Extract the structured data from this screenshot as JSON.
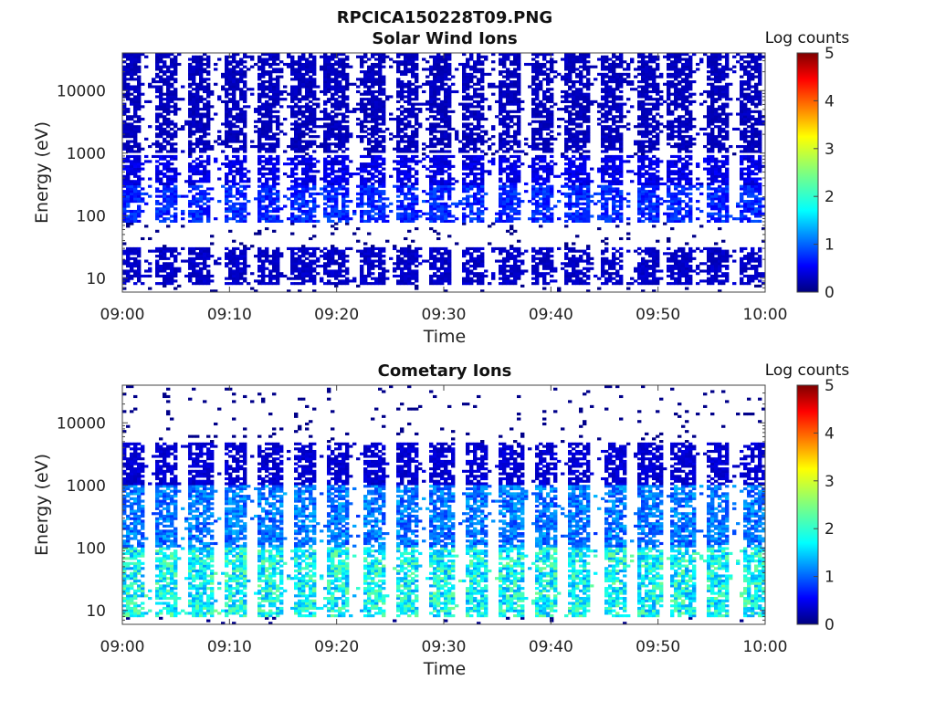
{
  "figure": {
    "title": "RPCICA150228T09.PNG"
  },
  "chart_data": [
    {
      "type": "heatmap",
      "title": "Solar Wind Ions",
      "xlabel": "Time",
      "ylabel": "Energy (eV)",
      "x_range": [
        "09:00",
        "10:00"
      ],
      "x_ticks": [
        "09:00",
        "09:10",
        "09:20",
        "09:30",
        "09:40",
        "09:50",
        "10:00"
      ],
      "y_scale": "log",
      "ylim": [
        6,
        40000
      ],
      "y_ticks": [
        {
          "value": 10,
          "label": "10"
        },
        {
          "value": 100,
          "label": "100"
        },
        {
          "value": 1000,
          "label": "1000"
        },
        {
          "value": 10000,
          "label": "10000"
        }
      ],
      "colorbar": {
        "title": "Log counts",
        "range": [
          0,
          5
        ],
        "ticks": [
          "0",
          "1",
          "2",
          "3",
          "4",
          "5"
        ],
        "colormap": "jet"
      },
      "sweep_peaks_minutes": [
        0.6,
        4.0,
        7.2,
        10.5,
        13.6,
        16.8,
        20.0,
        23.3,
        26.5,
        29.6,
        32.8,
        36.2,
        39.2,
        42.5,
        45.7,
        49.0,
        52.0,
        55.5,
        58.7
      ],
      "energy_bands": [
        {
          "e_min": 8,
          "e_max": 30,
          "log_counts": 0.35
        },
        {
          "e_min": 80,
          "e_max": 300,
          "log_counts": 0.8
        },
        {
          "e_min": 300,
          "e_max": 900,
          "log_counts": 0.5
        },
        {
          "e_min": 1000,
          "e_max": 40000,
          "log_counts": 0.3
        }
      ]
    },
    {
      "type": "heatmap",
      "title": "Cometary Ions",
      "xlabel": "Time",
      "ylabel": "Energy (eV)",
      "x_range": [
        "09:00",
        "10:00"
      ],
      "x_ticks": [
        "09:00",
        "09:10",
        "09:20",
        "09:30",
        "09:40",
        "09:50",
        "10:00"
      ],
      "y_scale": "log",
      "ylim": [
        6,
        40000
      ],
      "y_ticks": [
        {
          "value": 10,
          "label": "10"
        },
        {
          "value": 100,
          "label": "100"
        },
        {
          "value": 1000,
          "label": "1000"
        },
        {
          "value": 10000,
          "label": "10000"
        }
      ],
      "colorbar": {
        "title": "Log counts",
        "range": [
          0,
          5
        ],
        "ticks": [
          "0",
          "1",
          "2",
          "3",
          "4",
          "5"
        ],
        "colormap": "jet"
      },
      "sweep_peaks_minutes": [
        0.9,
        4.1,
        7.4,
        10.6,
        13.8,
        17.0,
        20.2,
        23.5,
        26.6,
        29.9,
        33.0,
        36.3,
        39.5,
        42.7,
        46.0,
        49.2,
        52.3,
        55.6,
        58.9
      ],
      "energy_bands": [
        {
          "e_min": 8,
          "e_max": 100,
          "log_counts": 1.9
        },
        {
          "e_min": 100,
          "e_max": 1000,
          "log_counts": 1.2
        },
        {
          "e_min": 1000,
          "e_max": 5000,
          "log_counts": 0.4
        }
      ]
    }
  ]
}
